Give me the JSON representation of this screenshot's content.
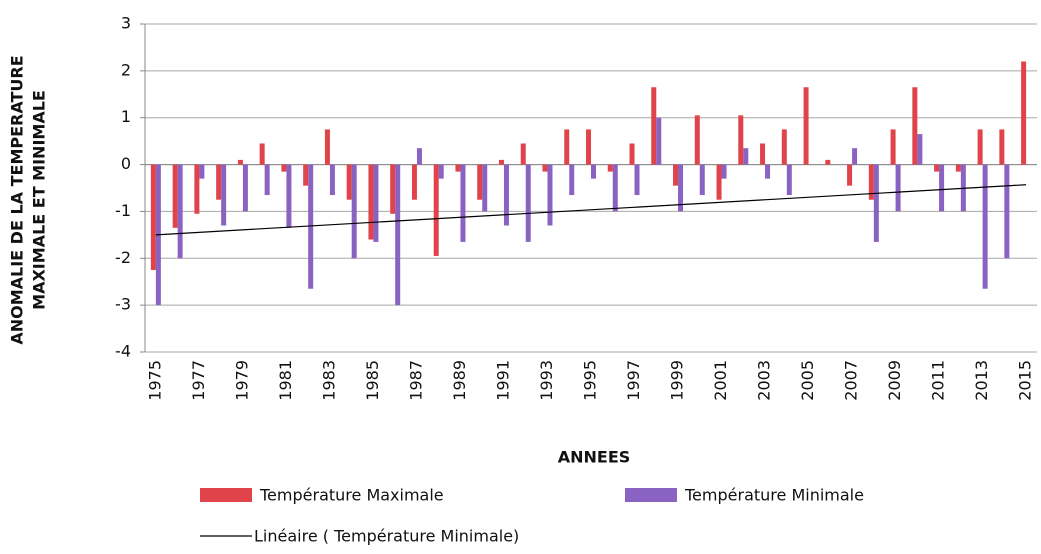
{
  "chart_data": {
    "type": "bar",
    "y_label": [
      "ANOMALIE DE LA TEMPERATURE",
      "MAXIMALE ET MINIMALE"
    ],
    "x_label": "ANNEES",
    "categories": [
      "1975",
      null,
      "1977",
      null,
      "1979",
      null,
      "1981",
      null,
      "1983",
      null,
      "1985",
      null,
      "1987",
      null,
      "1989",
      null,
      "1991",
      null,
      "1993",
      null,
      "1995",
      null,
      "1997",
      null,
      "1999",
      null,
      "2001",
      null,
      "2003",
      null,
      "2005",
      null,
      "2007",
      null,
      "2009",
      null,
      "2011",
      null,
      "2013",
      null,
      "2015"
    ],
    "series": [
      {
        "name": "Température Maximale",
        "color": "#e0434a",
        "values": [
          -2.25,
          -1.35,
          -1.05,
          -0.75,
          0.1,
          0.45,
          -0.15,
          -0.45,
          0.75,
          -0.75,
          -1.6,
          -1.05,
          -0.75,
          -1.95,
          -0.15,
          -0.75,
          0.1,
          0.45,
          -0.15,
          0.75,
          0.75,
          -0.15,
          0.45,
          1.65,
          -0.45,
          1.05,
          -0.75,
          1.05,
          0.45,
          0.75,
          1.65,
          0.1,
          -0.45,
          -0.75,
          0.75,
          1.65,
          -0.15,
          -0.15,
          0.75,
          0.75,
          2.2
        ]
      },
      {
        "name": "Température Minimale",
        "color": "#8a63c2",
        "values": [
          -3.0,
          -2.0,
          -0.3,
          -1.3,
          -1.0,
          -0.65,
          -1.35,
          -2.65,
          -0.65,
          -2.0,
          -1.65,
          -3.0,
          0.35,
          -0.3,
          -1.65,
          -1.0,
          -1.3,
          -1.65,
          -1.3,
          -0.65,
          -0.3,
          -1.0,
          -0.65,
          1.0,
          -1.0,
          -0.65,
          -0.3,
          0.35,
          -0.3,
          -0.65,
          0,
          0,
          0.35,
          -1.65,
          -1.0,
          0.65,
          -1.0,
          -1.0,
          -2.65,
          -2.0,
          0
        ]
      }
    ],
    "trendline": {
      "name": "Linéaire ( Température Minimale)",
      "color": "#000000",
      "values": [
        -1.5,
        -0.43
      ]
    },
    "ylim": [
      -4,
      3
    ],
    "yticks": [
      -4,
      -3,
      -2,
      -1,
      0,
      1,
      2,
      3
    ],
    "grid": true
  }
}
